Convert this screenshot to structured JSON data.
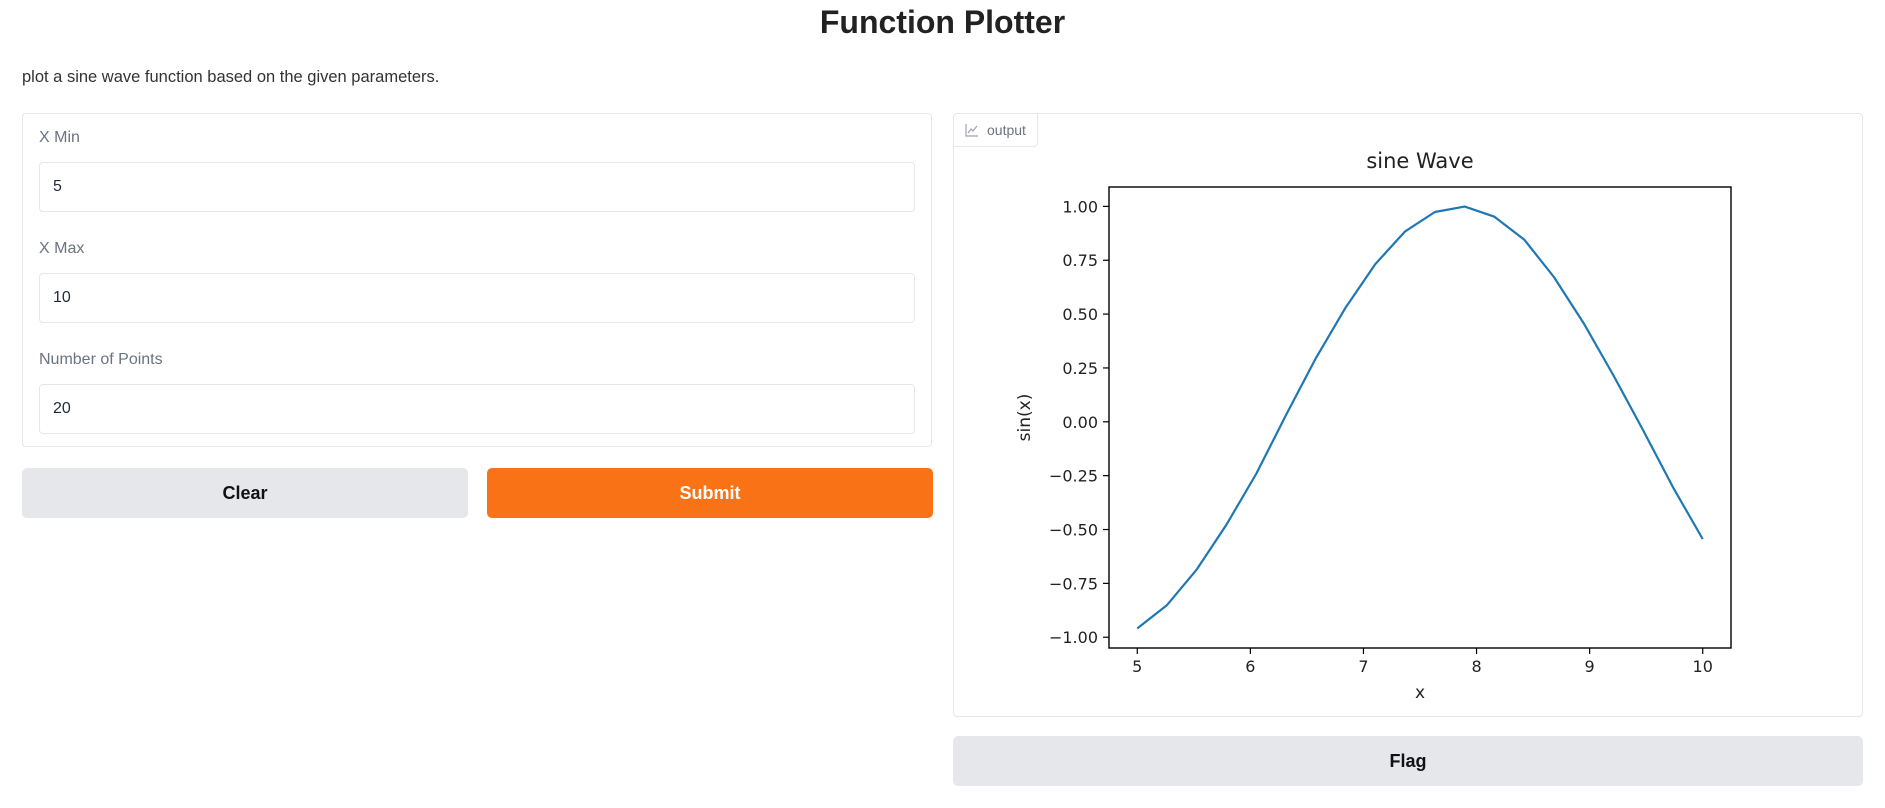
{
  "page": {
    "title": "Function Plotter",
    "description": "plot a sine wave function based on the given parameters."
  },
  "form": {
    "fields": [
      {
        "label": "X Min",
        "value": "5"
      },
      {
        "label": "X Max",
        "value": "10"
      },
      {
        "label": "Number of Points",
        "value": "20"
      }
    ],
    "clear_label": "Clear",
    "submit_label": "Submit"
  },
  "output": {
    "label": "output",
    "icon": "chart-icon",
    "flag_label": "Flag"
  },
  "colors": {
    "accent": "#f97316",
    "secondary_button": "#e5e7eb",
    "line": "#1f77b4"
  },
  "chart_data": {
    "type": "line",
    "title": "sine Wave",
    "xlabel": "x",
    "ylabel": "sin(x)",
    "xlim": [
      4.75,
      10.25
    ],
    "ylim": [
      -1.05,
      1.09
    ],
    "xticks": [
      5,
      6,
      7,
      8,
      9,
      10
    ],
    "yticks": [
      -1.0,
      -0.75,
      -0.5,
      -0.25,
      0.0,
      0.25,
      0.5,
      0.75,
      1.0
    ],
    "ytick_labels": [
      "−1.00",
      "−0.75",
      "−0.50",
      "−0.25",
      "0.00",
      "0.25",
      "0.50",
      "0.75",
      "1.00"
    ],
    "grid": false,
    "series": [
      {
        "x": [
          5.0,
          5.263,
          5.526,
          5.789,
          6.053,
          6.316,
          6.579,
          6.842,
          7.105,
          7.368,
          7.632,
          7.895,
          8.158,
          8.421,
          8.684,
          8.947,
          9.211,
          9.474,
          9.737,
          10.0
        ],
        "y": [
          -0.959,
          -0.851,
          -0.685,
          -0.477,
          -0.24,
          0.032,
          0.295,
          0.53,
          0.732,
          0.884,
          0.974,
          0.999,
          0.952,
          0.846,
          0.672,
          0.458,
          0.215,
          -0.04,
          -0.304,
          -0.544
        ]
      }
    ]
  }
}
